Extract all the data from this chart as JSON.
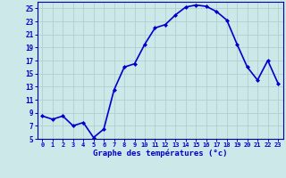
{
  "hours": [
    0,
    1,
    2,
    3,
    4,
    5,
    6,
    7,
    8,
    9,
    10,
    11,
    12,
    13,
    14,
    15,
    16,
    17,
    18,
    19,
    20,
    21,
    22,
    23
  ],
  "temps": [
    8.5,
    8.0,
    8.5,
    7.0,
    7.5,
    5.2,
    6.5,
    12.5,
    16.0,
    16.5,
    19.5,
    22.0,
    22.5,
    24.0,
    25.2,
    25.5,
    25.3,
    24.5,
    23.2,
    19.5,
    16.0,
    14.0,
    17.0,
    13.5
  ],
  "line_color": "#0000cc",
  "marker": "D",
  "marker_size": 2.0,
  "bg_color": "#cce8e8",
  "grid_color": "#aacccc",
  "xlabel": "Graphe des températures (°c)",
  "xlabel_color": "#0000cc",
  "tick_color": "#0000cc",
  "ylim": [
    5,
    26
  ],
  "yticks": [
    5,
    7,
    9,
    11,
    13,
    15,
    17,
    19,
    21,
    23,
    25
  ],
  "spine_color": "#0000aa",
  "linewidth": 1.2
}
